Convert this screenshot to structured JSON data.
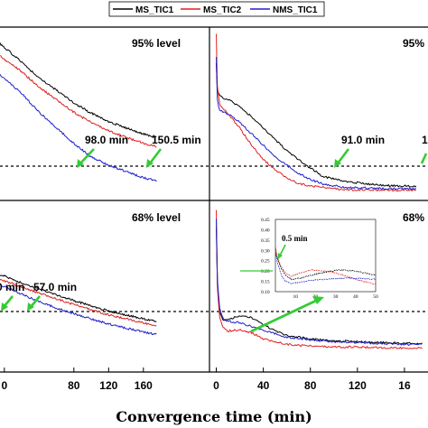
{
  "xlabel": "Convergence time (min)",
  "legend": [
    {
      "name": "MS_TIC1",
      "color": "#000000"
    },
    {
      "name": "MS_TIC2",
      "color": "#e02020"
    },
    {
      "name": "NMS_TIC1",
      "color": "#2020cc"
    }
  ],
  "chart_data": [
    {
      "type": "line",
      "panel": "top-left",
      "level_label": "95%  level",
      "xlim": [
        -5,
        235
      ],
      "x_ticks": [
        "0",
        "80",
        "120",
        "160"
      ],
      "annotations": [
        {
          "text": "98.0  min",
          "x": 98.0
        },
        {
          "text": "150.5  min",
          "x": 150.5
        }
      ],
      "series": [
        {
          "name": "MS_TIC1",
          "x": [
            -5,
            20,
            40,
            60,
            80,
            98,
            120,
            140,
            160,
            175
          ],
          "y": [
            0.7,
            0.64,
            0.59,
            0.55,
            0.51,
            0.48,
            0.45,
            0.43,
            0.41,
            0.4
          ]
        },
        {
          "name": "MS_TIC2",
          "x": [
            -5,
            20,
            40,
            60,
            80,
            98,
            120,
            140,
            160,
            175
          ],
          "y": [
            0.66,
            0.61,
            0.56,
            0.52,
            0.48,
            0.45,
            0.42,
            0.4,
            0.38,
            0.37
          ]
        },
        {
          "name": "NMS_TIC1",
          "x": [
            -5,
            20,
            40,
            60,
            80,
            98,
            120,
            140,
            160,
            175
          ],
          "y": [
            0.6,
            0.54,
            0.48,
            0.43,
            0.38,
            0.34,
            0.31,
            0.29,
            0.27,
            0.26
          ]
        }
      ]
    },
    {
      "type": "line",
      "panel": "top-right",
      "level_label": "95%",
      "xlim": [
        -5,
        180
      ],
      "x_ticks": [
        "0",
        "40",
        "80",
        "120",
        "16"
      ],
      "annotations": [
        {
          "text": "91.0  min",
          "x": 91.0
        },
        {
          "text": "1",
          "x": 170
        }
      ],
      "series": [
        {
          "name": "MS_TIC1",
          "x": [
            0,
            1,
            3,
            10,
            20,
            30,
            40,
            50,
            60,
            70,
            80,
            91,
            110,
            130,
            150,
            170
          ],
          "y": [
            2.5,
            2.0,
            1.9,
            1.85,
            1.72,
            1.55,
            1.35,
            1.15,
            0.95,
            0.8,
            0.65,
            0.5,
            0.42,
            0.37,
            0.34,
            0.33
          ]
        },
        {
          "name": "MS_TIC2",
          "x": [
            0,
            1,
            3,
            10,
            20,
            30,
            40,
            50,
            60,
            70,
            80,
            91,
            110,
            130,
            150,
            170
          ],
          "y": [
            3.0,
            2.05,
            1.75,
            1.6,
            1.35,
            1.05,
            0.8,
            0.62,
            0.48,
            0.38,
            0.34,
            0.31,
            0.27,
            0.27,
            0.26,
            0.27
          ]
        },
        {
          "name": "NMS_TIC1",
          "x": [
            0,
            1,
            3,
            10,
            20,
            30,
            40,
            50,
            60,
            70,
            80,
            91,
            110,
            130,
            150,
            170
          ],
          "y": [
            2.6,
            1.8,
            1.65,
            1.6,
            1.45,
            1.25,
            1.05,
            0.85,
            0.7,
            0.56,
            0.45,
            0.37,
            0.31,
            0.3,
            0.29,
            0.29
          ]
        }
      ]
    },
    {
      "type": "line",
      "panel": "bottom-left",
      "level_label": "68%  level",
      "xlim": [
        -5,
        235
      ],
      "x_ticks": [
        "0",
        "80",
        "120",
        "160"
      ],
      "annotations": [
        {
          "text": "0  min",
          "x": 0
        },
        {
          "text": "57.0  min",
          "x": 57.0
        }
      ],
      "series": [
        {
          "name": "MS_TIC1",
          "x": [
            -5,
            10,
            30,
            57,
            80,
            100,
            120,
            140,
            160,
            175
          ],
          "y": [
            0.34,
            0.3,
            0.25,
            0.19,
            0.14,
            0.1,
            0.06,
            0.03,
            0.0,
            -0.02
          ]
        },
        {
          "name": "MS_TIC2",
          "x": [
            -5,
            10,
            30,
            57,
            80,
            100,
            120,
            140,
            160,
            175
          ],
          "y": [
            0.3,
            0.27,
            0.22,
            0.16,
            0.11,
            0.07,
            0.03,
            0.0,
            -0.03,
            -0.05
          ]
        },
        {
          "name": "NMS_TIC1",
          "x": [
            -5,
            10,
            30,
            57,
            80,
            100,
            120,
            140,
            160,
            175
          ],
          "y": [
            0.26,
            0.22,
            0.16,
            0.09,
            0.04,
            0.0,
            -0.04,
            -0.07,
            -0.1,
            -0.12
          ]
        }
      ]
    },
    {
      "type": "line",
      "panel": "bottom-right",
      "level_label": "68%",
      "xlim": [
        -5,
        180
      ],
      "x_ticks": [
        "0",
        "40",
        "80",
        "120",
        "16"
      ],
      "series": [
        {
          "name": "MS_TIC1",
          "x": [
            0,
            1,
            3,
            6,
            10,
            20,
            30,
            40,
            50,
            60,
            80,
            100,
            120,
            140,
            160,
            175
          ],
          "y": [
            1.6,
            0.95,
            0.65,
            0.56,
            0.58,
            0.62,
            0.6,
            0.52,
            0.45,
            0.4,
            0.36,
            0.34,
            0.33,
            0.32,
            0.31,
            0.31
          ]
        },
        {
          "name": "MS_TIC2",
          "x": [
            0,
            1,
            3,
            6,
            10,
            20,
            30,
            40,
            50,
            60,
            80,
            100,
            120,
            140,
            160,
            175
          ],
          "y": [
            1.8,
            0.9,
            0.6,
            0.48,
            0.45,
            0.46,
            0.43,
            0.36,
            0.33,
            0.3,
            0.28,
            0.27,
            0.27,
            0.26,
            0.26,
            0.26
          ]
        },
        {
          "name": "NMS_TIC1",
          "x": [
            0,
            1,
            3,
            6,
            10,
            20,
            30,
            40,
            50,
            60,
            80,
            100,
            120,
            140,
            160,
            175
          ],
          "y": [
            1.7,
            1.0,
            0.7,
            0.58,
            0.56,
            0.54,
            0.5,
            0.46,
            0.42,
            0.38,
            0.35,
            0.33,
            0.32,
            0.31,
            0.3,
            0.3
          ]
        }
      ]
    },
    {
      "type": "line",
      "panel": "inset",
      "xlim": [
        0,
        50
      ],
      "ylim": [
        0.1,
        0.45
      ],
      "x_ticks": [
        "10",
        "20",
        "30",
        "40",
        "50"
      ],
      "y_ticks": [
        "0.45",
        "0.40",
        "0.35",
        "0.30",
        "0.25",
        "0.20",
        "0.15",
        "0.10"
      ],
      "annotation": {
        "text": "0.5  min",
        "x": 0.5
      },
      "series": [
        {
          "name": "MS_TIC1",
          "x": [
            0,
            1,
            3,
            5,
            8,
            12,
            18,
            25,
            32,
            40,
            50
          ],
          "y": [
            0.3,
            0.26,
            0.21,
            0.18,
            0.16,
            0.165,
            0.18,
            0.195,
            0.205,
            0.2,
            0.18
          ]
        },
        {
          "name": "MS_TIC2",
          "x": [
            0,
            1,
            3,
            5,
            8,
            12,
            18,
            25,
            32,
            40,
            50
          ],
          "y": [
            0.32,
            0.27,
            0.22,
            0.19,
            0.175,
            0.19,
            0.205,
            0.2,
            0.185,
            0.16,
            0.135
          ]
        },
        {
          "name": "NMS_TIC1",
          "x": [
            0,
            1,
            3,
            5,
            8,
            12,
            18,
            25,
            32,
            40,
            50
          ],
          "y": [
            0.29,
            0.24,
            0.18,
            0.15,
            0.14,
            0.145,
            0.155,
            0.16,
            0.165,
            0.165,
            0.16
          ]
        }
      ]
    }
  ]
}
